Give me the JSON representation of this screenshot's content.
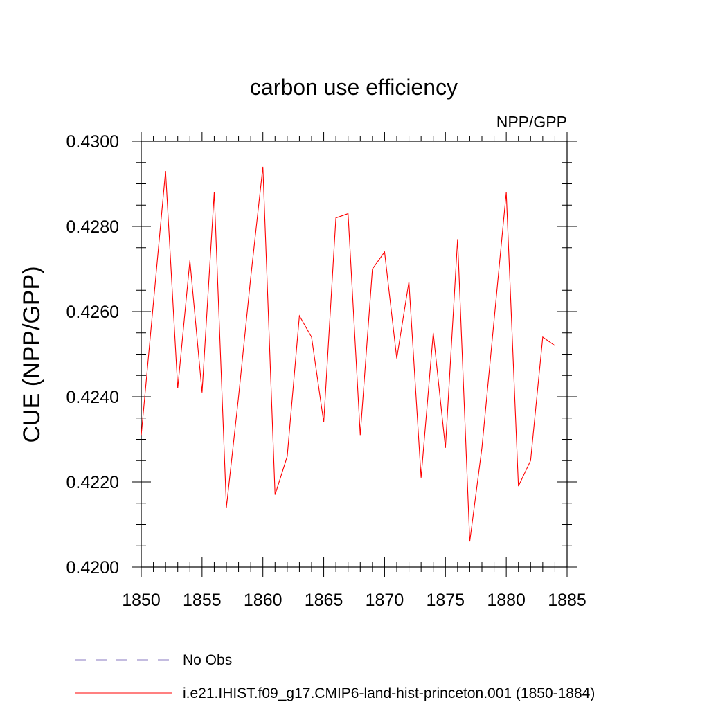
{
  "chart_data": {
    "type": "line",
    "title": "carbon use efficiency",
    "subtitle": "NPP/GPP",
    "xlabel": "",
    "ylabel": "CUE  (NPP/GPP)",
    "xlim": [
      1850,
      1885
    ],
    "ylim": [
      0.42,
      0.43
    ],
    "x_ticks": [
      1850,
      1855,
      1860,
      1865,
      1870,
      1875,
      1880,
      1885
    ],
    "x_tick_labels": [
      "1850",
      "1855",
      "1860",
      "1865",
      "1870",
      "1875",
      "1880",
      "1885"
    ],
    "y_ticks": [
      0.42,
      0.422,
      0.424,
      0.426,
      0.428,
      0.43
    ],
    "y_tick_labels": [
      "0.4200",
      "0.4220",
      "0.4240",
      "0.4260",
      "0.4280",
      "0.4300"
    ],
    "grid": false,
    "legend_position": "bottom",
    "series": [
      {
        "name": "i.e21.IHIST.f09_g17.CMIP6-land-hist-princeton.001 (1850-1884)",
        "color": "#ff0000",
        "style": "solid",
        "x": [
          1850,
          1851,
          1852,
          1853,
          1854,
          1855,
          1856,
          1857,
          1858,
          1859,
          1860,
          1861,
          1862,
          1863,
          1864,
          1865,
          1866,
          1867,
          1868,
          1869,
          1870,
          1871,
          1872,
          1873,
          1874,
          1875,
          1876,
          1877,
          1878,
          1879,
          1880,
          1881,
          1882,
          1883,
          1884
        ],
        "y": [
          0.4231,
          0.4262,
          0.4293,
          0.4242,
          0.4272,
          0.4241,
          0.4288,
          0.4214,
          0.424,
          0.4268,
          0.4294,
          0.4217,
          0.4226,
          0.4259,
          0.4254,
          0.4234,
          0.4282,
          0.4283,
          0.4231,
          0.427,
          0.4274,
          0.4249,
          0.4267,
          0.4221,
          0.4255,
          0.4228,
          0.4277,
          0.4206,
          0.4228,
          0.4258,
          0.4288,
          0.4219,
          0.4225,
          0.4254,
          0.4252
        ]
      },
      {
        "name": "No Obs",
        "color": "#8878c0",
        "style": "dashed",
        "x": [],
        "y": []
      }
    ]
  }
}
